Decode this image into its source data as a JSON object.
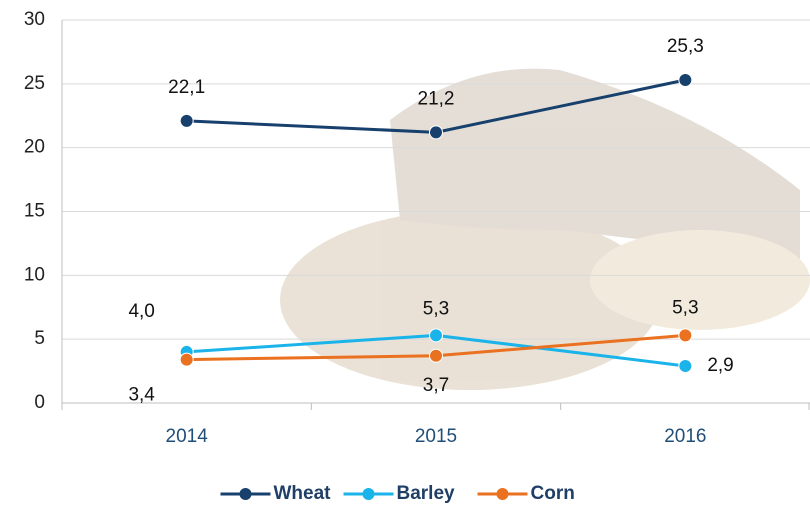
{
  "chart_data": {
    "type": "line",
    "categories": [
      "2014",
      "2015",
      "2016"
    ],
    "series": [
      {
        "name": "Wheat",
        "color": "#17406d",
        "values": [
          22.1,
          21.2,
          25.3
        ],
        "value_labels": [
          "22,1",
          "21,2",
          "25,3"
        ]
      },
      {
        "name": "Barley",
        "color": "#1ab3ea",
        "values": [
          4.0,
          5.3,
          2.9
        ],
        "value_labels": [
          "4,0",
          "5,3",
          "2,9"
        ]
      },
      {
        "name": "Corn",
        "color": "#ea7120",
        "values": [
          3.4,
          3.7,
          5.3
        ],
        "value_labels": [
          "3,4",
          "3,7",
          "5,3"
        ]
      }
    ],
    "ylim": [
      0,
      30
    ],
    "yticks": [
      0,
      5,
      10,
      15,
      20,
      25,
      30
    ],
    "grid": true,
    "legend": "bottom"
  }
}
